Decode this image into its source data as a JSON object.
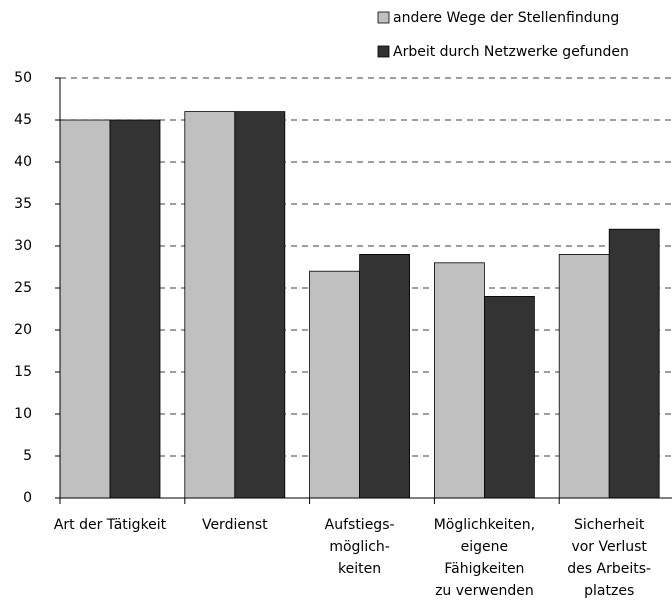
{
  "chart_data": {
    "type": "bar",
    "categories": [
      [
        "Art der Tätigkeit"
      ],
      [
        "Verdienst"
      ],
      [
        "Aufstiegs-",
        "möglich-",
        "keiten"
      ],
      [
        "Möglichkeiten,",
        "eigene",
        "Fähigkeiten",
        "zu verwenden"
      ],
      [
        "Sicherheit",
        "vor Verlust",
        "des Arbeits-",
        "platzes"
      ]
    ],
    "series": [
      {
        "name": "andere Wege der Stellenfindung",
        "color": "#c0c0c0",
        "values": [
          45,
          46,
          27,
          28,
          29
        ]
      },
      {
        "name": "Arbeit durch Netzwerke gefunden",
        "color": "#333333",
        "values": [
          45,
          46,
          29,
          24,
          32
        ]
      }
    ],
    "ylim": [
      0,
      50
    ],
    "yticks": [
      0,
      5,
      10,
      15,
      20,
      25,
      30,
      35,
      40,
      45,
      50
    ],
    "grid": true,
    "legend": "top-right"
  }
}
